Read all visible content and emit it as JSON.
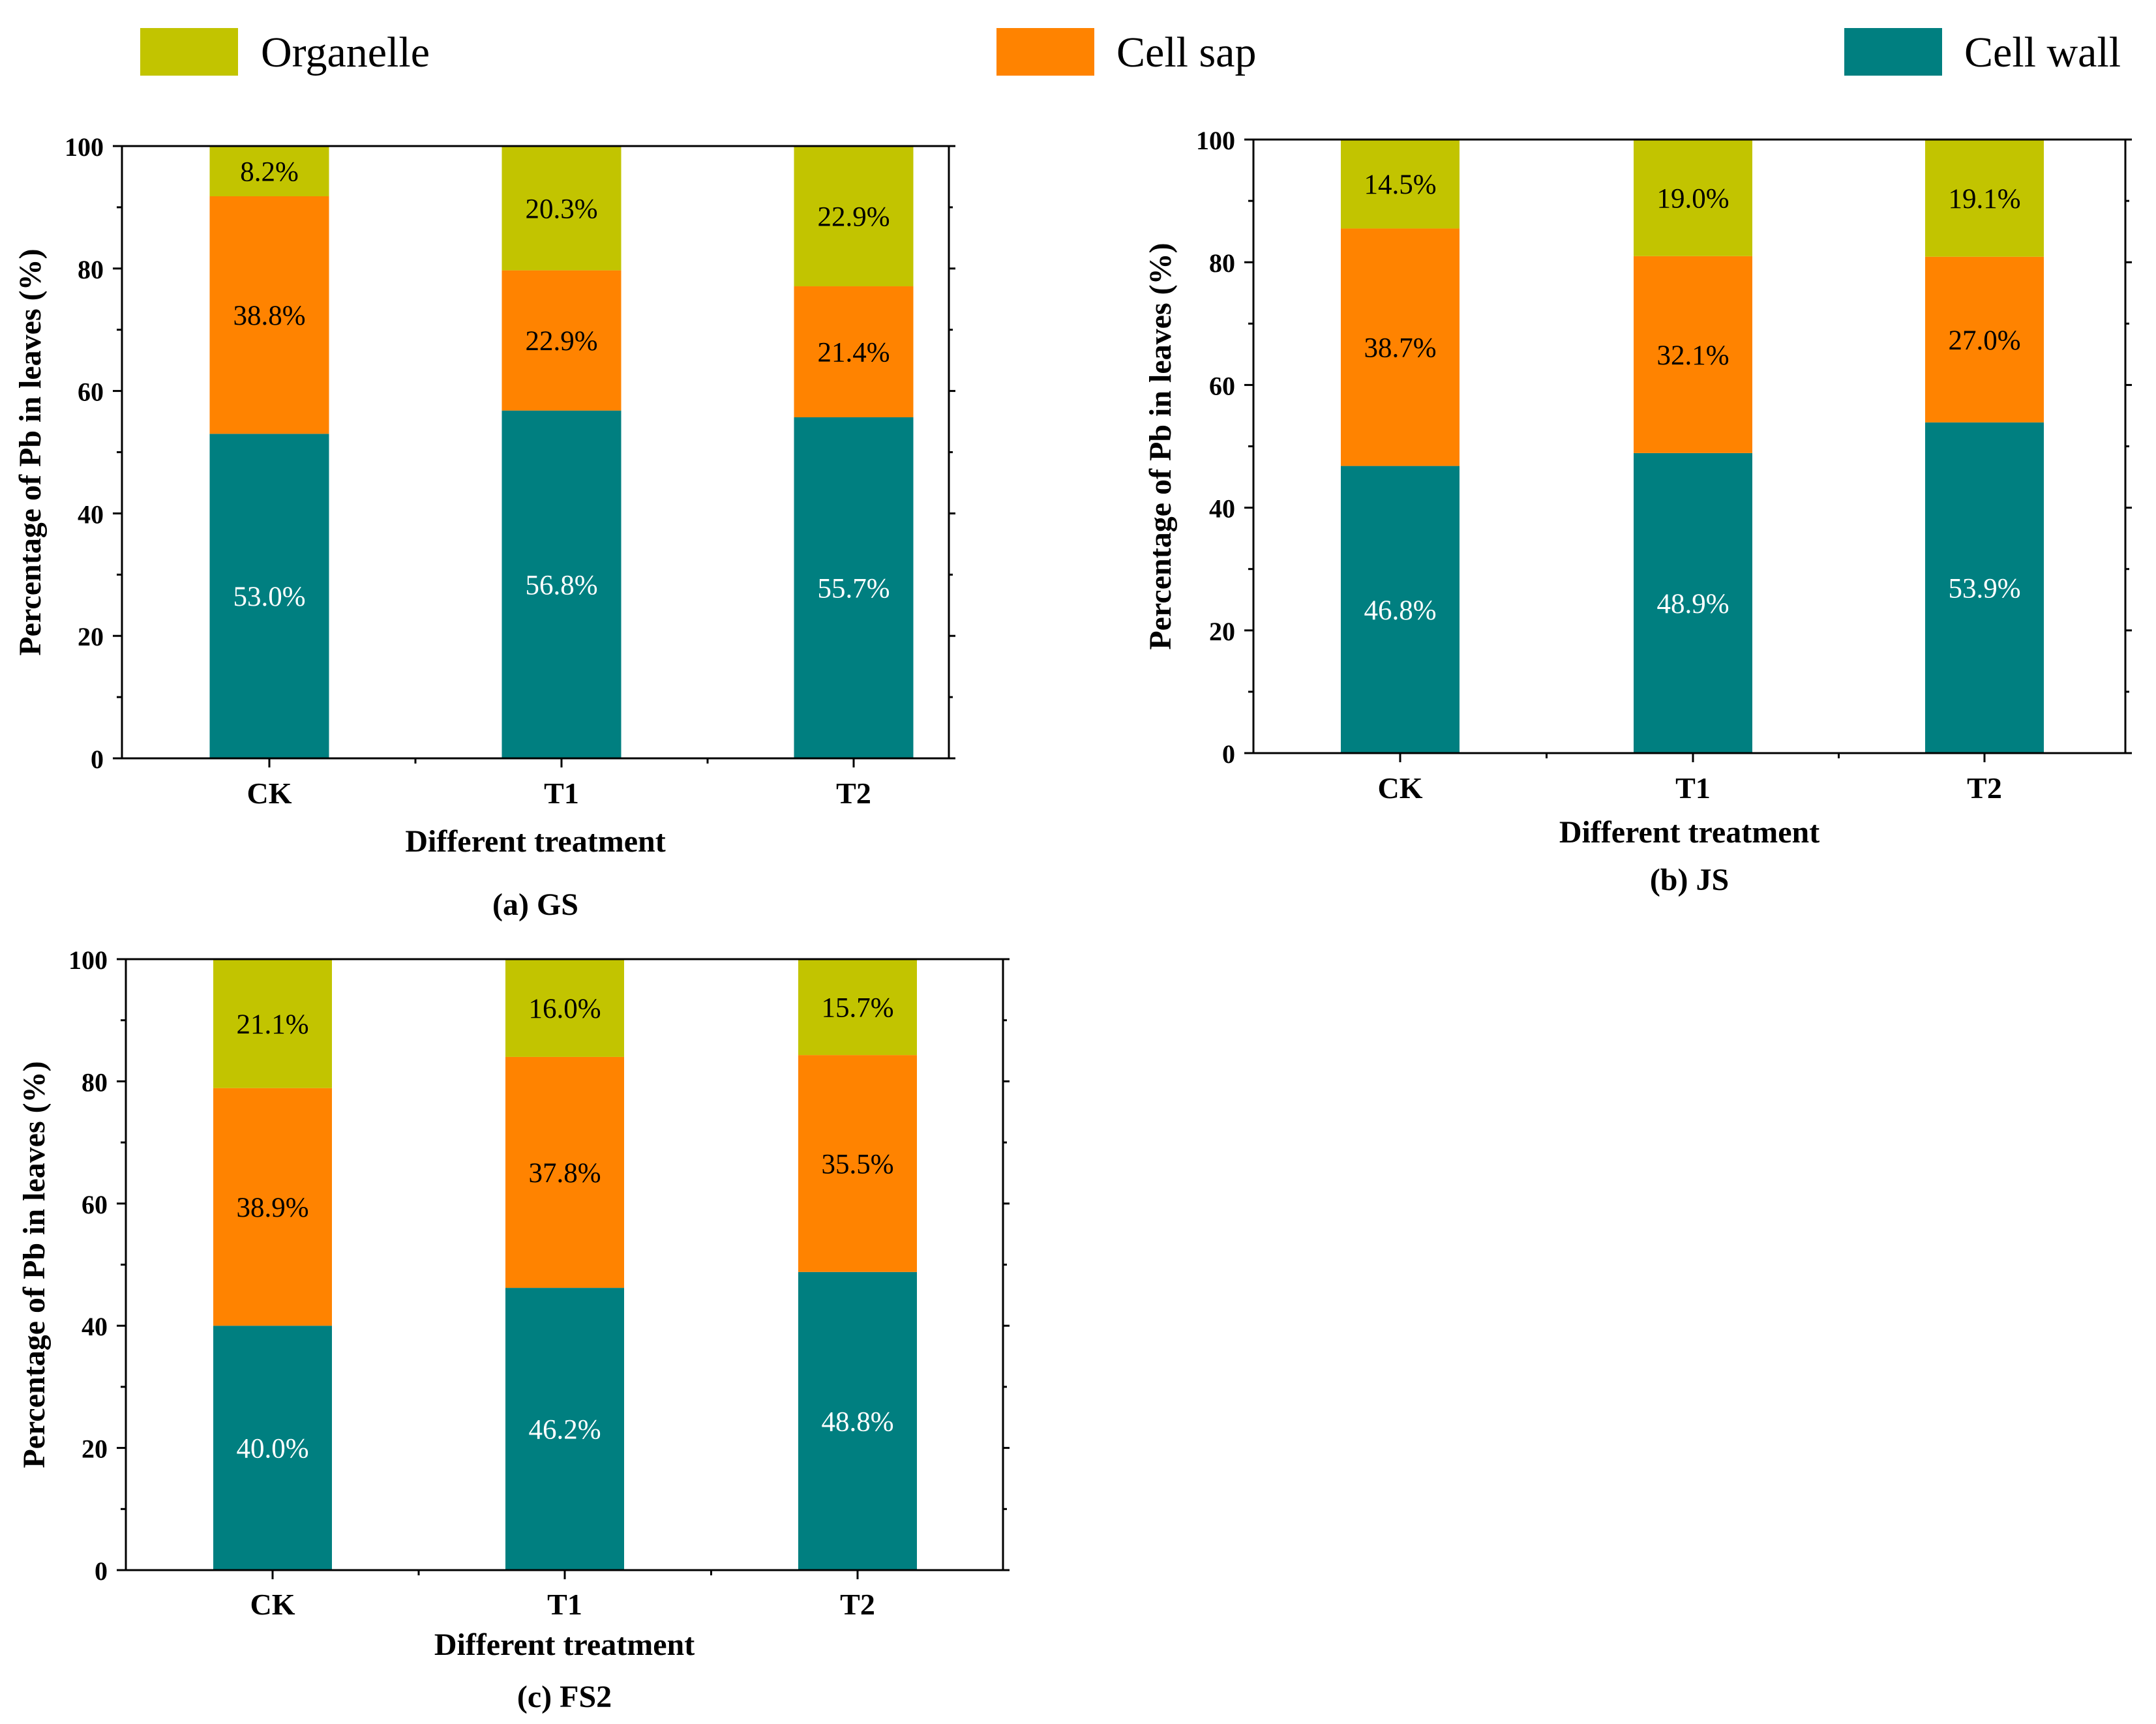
{
  "legend": {
    "items": [
      {
        "label": "Organelle",
        "color": "#c2c400"
      },
      {
        "label": "Cell sap",
        "color": "#ff8300"
      },
      {
        "label": "Cell wall",
        "color": "#007f80"
      }
    ]
  },
  "chart_data": [
    {
      "type": "bar",
      "stacked": true,
      "title": "(a) GS",
      "xlabel": "Different treatment",
      "ylabel": "Percentage of  Pb in leaves (%)",
      "ylim": [
        0,
        100
      ],
      "yticks": [
        "0",
        "20",
        "40",
        "60",
        "80",
        "100"
      ],
      "categories": [
        "CK",
        "T1",
        "T2"
      ],
      "series": [
        {
          "name": "Cell wall",
          "values": [
            53.0,
            56.8,
            55.7
          ],
          "labels": [
            "53.0%",
            "56.8%",
            "55.7%"
          ]
        },
        {
          "name": "Cell sap",
          "values": [
            38.8,
            22.9,
            21.4
          ],
          "labels": [
            "38.8%",
            "22.9%",
            "21.4%"
          ]
        },
        {
          "name": "Organelle",
          "values": [
            8.2,
            20.3,
            22.9
          ],
          "labels": [
            "8.2%",
            "20.3%",
            "22.9%"
          ]
        }
      ]
    },
    {
      "type": "bar",
      "stacked": true,
      "title": "(b) JS",
      "xlabel": "Different treatment",
      "ylabel": "Percentage of  Pb in leaves (%)",
      "ylim": [
        0,
        100
      ],
      "yticks": [
        "0",
        "20",
        "40",
        "60",
        "80",
        "100"
      ],
      "categories": [
        "CK",
        "T1",
        "T2"
      ],
      "series": [
        {
          "name": "Cell wall",
          "values": [
            46.8,
            48.9,
            53.9
          ],
          "labels": [
            "46.8%",
            "48.9%",
            "53.9%"
          ]
        },
        {
          "name": "Cell sap",
          "values": [
            38.7,
            32.1,
            27.0
          ],
          "labels": [
            "38.7%",
            "32.1%",
            "27.0%"
          ]
        },
        {
          "name": "Organelle",
          "values": [
            14.5,
            19.0,
            19.1
          ],
          "labels": [
            "14.5%",
            "19.0%",
            "19.1%"
          ]
        }
      ]
    },
    {
      "type": "bar",
      "stacked": true,
      "title": "(c) FS2",
      "xlabel": "Different treatment",
      "ylabel": "Percentage of  Pb in leaves (%)",
      "ylim": [
        0,
        100
      ],
      "yticks": [
        "0",
        "20",
        "40",
        "60",
        "80",
        "100"
      ],
      "categories": [
        "CK",
        "T1",
        "T2"
      ],
      "series": [
        {
          "name": "Cell wall",
          "values": [
            40.0,
            46.2,
            48.8
          ],
          "labels": [
            "40.0%",
            "46.2%",
            "48.8%"
          ]
        },
        {
          "name": "Cell sap",
          "values": [
            38.9,
            37.8,
            35.5
          ],
          "labels": [
            "38.9%",
            "37.8%",
            "35.5%"
          ]
        },
        {
          "name": "Organelle",
          "values": [
            21.1,
            16.0,
            15.7
          ],
          "labels": [
            "21.1%",
            "16.0%",
            "15.7%"
          ]
        }
      ]
    }
  ]
}
